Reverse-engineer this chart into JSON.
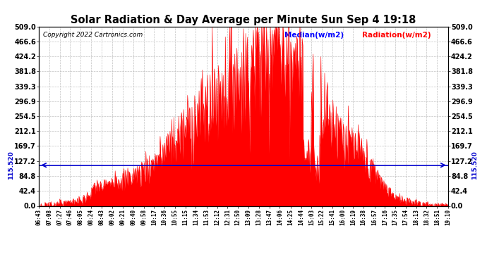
{
  "title": "Solar Radiation & Day Average per Minute Sun Sep 4 19:18",
  "copyright": "Copyright 2022 Cartronics.com",
  "legend_median_label": "Median(w/m2)",
  "legend_radiation_label": "Radiation(w/m2)",
  "median_value": 115.52,
  "ymax": 509.0,
  "ymin": 0.0,
  "yticks": [
    0.0,
    42.4,
    84.8,
    127.2,
    169.7,
    212.1,
    254.5,
    296.9,
    339.3,
    381.8,
    424.2,
    466.6,
    509.0
  ],
  "background_color": "#ffffff",
  "bar_color": "#ff0000",
  "median_color": "#0000cd",
  "grid_color": "#bbbbbb",
  "title_color": "#000000",
  "copyright_color": "#000000",
  "legend_median_color": "#0000ff",
  "legend_radiation_color": "#ff0000",
  "figsize": [
    6.9,
    3.75
  ],
  "dpi": 100,
  "time_labels": [
    "06:43",
    "07:08",
    "07:27",
    "07:46",
    "08:05",
    "08:24",
    "08:43",
    "09:02",
    "09:21",
    "09:40",
    "09:58",
    "10:17",
    "10:36",
    "10:55",
    "11:15",
    "11:34",
    "11:53",
    "12:12",
    "12:31",
    "12:50",
    "13:09",
    "13:28",
    "13:47",
    "14:06",
    "14:25",
    "14:44",
    "15:03",
    "15:22",
    "15:41",
    "16:00",
    "16:19",
    "16:38",
    "16:57",
    "17:16",
    "17:35",
    "17:54",
    "18:13",
    "18:32",
    "18:51",
    "19:10"
  ]
}
